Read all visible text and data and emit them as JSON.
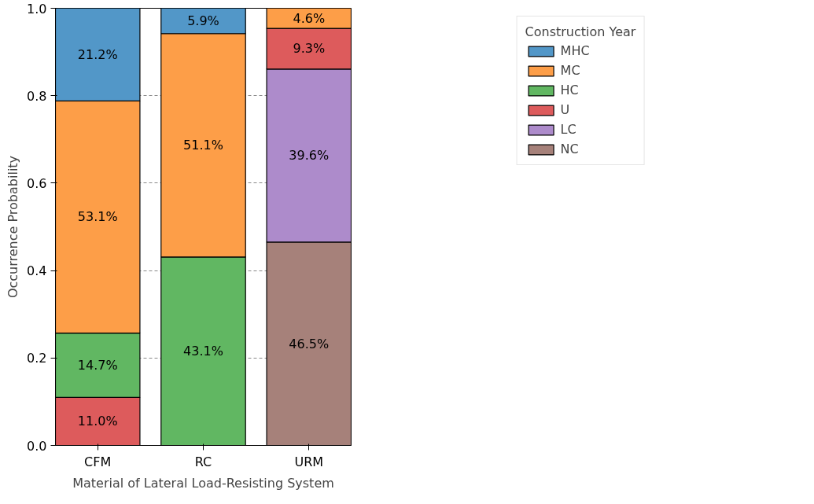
{
  "chart_data": {
    "type": "bar",
    "stacked": true,
    "xlabel": "Material of Lateral Load-Resisting System",
    "ylabel": "Occurrence Probability",
    "legend_title": "Construction Year",
    "categories": [
      "CFM",
      "RC",
      "URM"
    ],
    "series": [
      {
        "name": "NC",
        "color": "#a6817a",
        "values": [
          null,
          null,
          0.465
        ],
        "value_labels": [
          null,
          null,
          "46.5%"
        ]
      },
      {
        "name": "LC",
        "color": "#ad8bcb",
        "values": [
          null,
          null,
          0.396
        ],
        "value_labels": [
          null,
          null,
          "39.6%"
        ]
      },
      {
        "name": "U",
        "color": "#dd5b5c",
        "values": [
          0.11,
          null,
          0.093
        ],
        "value_labels": [
          "11.0%",
          null,
          "9.3%"
        ]
      },
      {
        "name": "HC",
        "color": "#61b762",
        "values": [
          0.147,
          0.431,
          null
        ],
        "value_labels": [
          "14.7%",
          "43.1%",
          null
        ]
      },
      {
        "name": "MC",
        "color": "#fd9e48",
        "values": [
          0.531,
          0.511,
          0.046
        ],
        "value_labels": [
          "53.1%",
          "51.1%",
          "4.6%"
        ]
      },
      {
        "name": "MHC",
        "color": "#5297c8",
        "values": [
          0.212,
          0.059,
          null
        ],
        "value_labels": [
          "21.2%",
          "5.9%",
          null
        ]
      }
    ],
    "ylim": [
      0,
      1
    ],
    "yticks": [
      {
        "value": 0,
        "label": "0.0"
      },
      {
        "value": 0.2,
        "label": "0.2"
      },
      {
        "value": 0.4,
        "label": "0.4"
      },
      {
        "value": 0.6,
        "label": "0.6"
      },
      {
        "value": 0.8,
        "label": "0.8"
      },
      {
        "value": 1,
        "label": "1.0"
      }
    ],
    "grid": "y",
    "legend": "right"
  }
}
